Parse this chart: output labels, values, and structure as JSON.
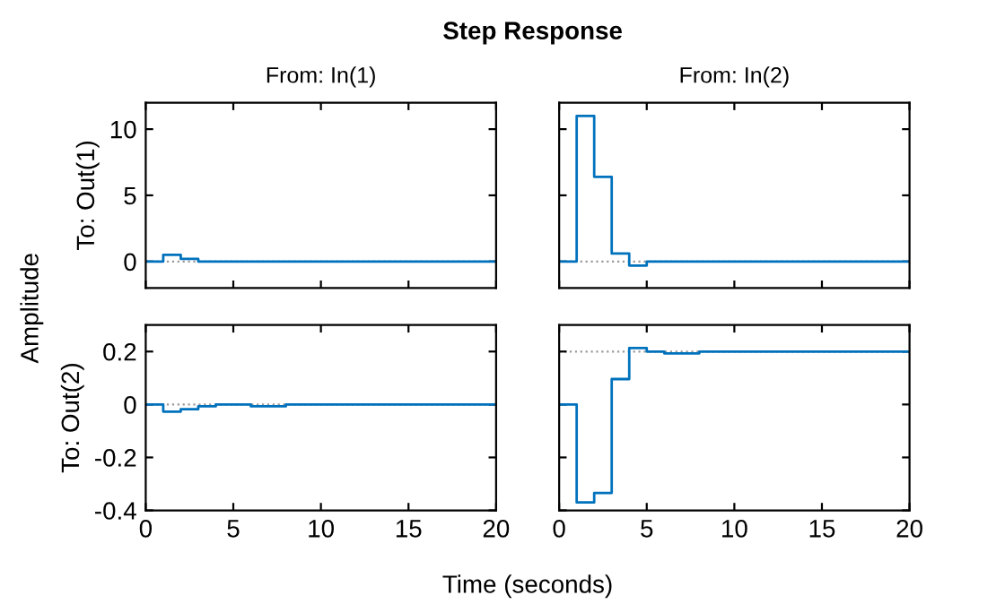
{
  "chart_data": [
    {
      "type": "step",
      "title": "From: In(1)",
      "ylabel": "To: Out(1)",
      "annotations": [
        "Step Response",
        "Amplitude",
        "Time (seconds)"
      ],
      "x": [
        0,
        1,
        2,
        3,
        20
      ],
      "series": [
        {
          "color": "#0072bd",
          "values": [
            0,
            0.5,
            0.2,
            0,
            0
          ]
        }
      ],
      "xlim": [
        0,
        20
      ],
      "xticks": [
        0,
        5,
        10,
        15,
        20
      ],
      "ylim": [
        -2,
        12
      ],
      "yticks": [
        0,
        5,
        10
      ],
      "tick_labels": "y",
      "grid": false,
      "ref_lines": [
        {
          "axis": "y",
          "value": 0,
          "color": "#999999",
          "line_style": "dotted"
        }
      ]
    },
    {
      "type": "step",
      "title": "From: In(2)",
      "x": [
        0,
        1,
        2,
        3,
        4,
        5,
        20
      ],
      "series": [
        {
          "color": "#0072bd",
          "values": [
            0,
            11,
            6.4,
            0.6,
            -0.3,
            0,
            0
          ]
        }
      ],
      "xlim": [
        0,
        20
      ],
      "xticks": [
        0,
        5,
        10,
        15,
        20
      ],
      "ylim": [
        -2,
        12
      ],
      "yticks": [
        0,
        5,
        10
      ],
      "tick_labels": false,
      "grid": false,
      "ref_lines": [
        {
          "axis": "y",
          "value": 0,
          "color": "#999999",
          "line_style": "dotted"
        }
      ]
    },
    {
      "type": "step",
      "ylabel": "To: Out(2)",
      "x": [
        0,
        1,
        2,
        3,
        4,
        6,
        8,
        20
      ],
      "series": [
        {
          "color": "#0072bd",
          "values": [
            0,
            -0.027,
            -0.018,
            -0.007,
            0,
            -0.007,
            0,
            0
          ]
        }
      ],
      "xlim": [
        0,
        20
      ],
      "xticks": [
        0,
        5,
        10,
        15,
        20
      ],
      "ylim": [
        -0.4,
        0.3
      ],
      "yticks": [
        -0.4,
        -0.2,
        0,
        0.2
      ],
      "grid": false,
      "ref_lines": [
        {
          "axis": "y",
          "value": 0,
          "color": "#999999",
          "line_style": "dotted"
        }
      ]
    },
    {
      "type": "step",
      "x": [
        0,
        1,
        2,
        3,
        4,
        5,
        6,
        8,
        20
      ],
      "series": [
        {
          "color": "#0072bd",
          "values": [
            0,
            -0.37,
            -0.334,
            0.096,
            0.213,
            0.2,
            0.193,
            0.2,
            0.2
          ]
        }
      ],
      "xlim": [
        0,
        20
      ],
      "xticks": [
        0,
        5,
        10,
        15,
        20
      ],
      "ylim": [
        -0.4,
        0.3
      ],
      "yticks": [
        -0.4,
        -0.2,
        0,
        0.2
      ],
      "tick_labels": "x",
      "grid": false,
      "ref_lines": [
        {
          "axis": "y",
          "value": 0.2,
          "color": "#999999",
          "line_style": "dotted"
        }
      ]
    }
  ]
}
